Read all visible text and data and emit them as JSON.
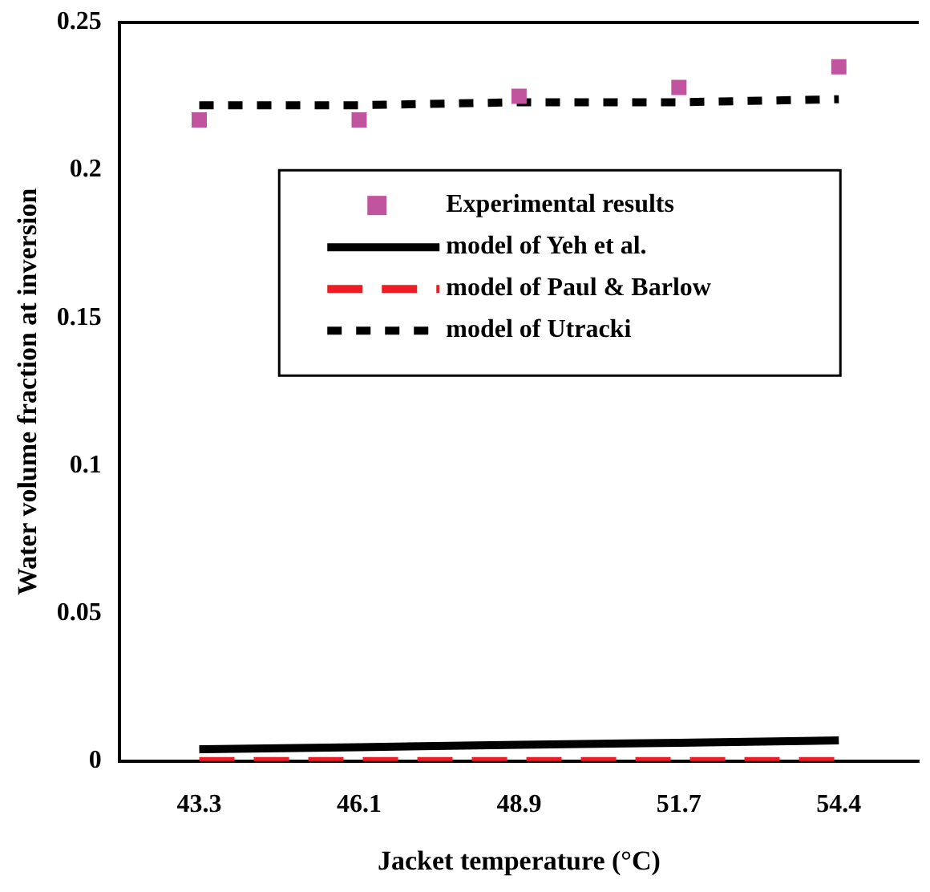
{
  "chart_data": {
    "type": "line",
    "xlabel": "Jacket temperature (°C)",
    "ylabel": "Water volume fraction at inversion",
    "categories": [
      "43.3",
      "46.1",
      "48.9",
      "51.7",
      "54.4"
    ],
    "series": [
      {
        "name": "Experimental results",
        "type": "scatter",
        "marker": "square",
        "color": "#c2549f",
        "values": [
          0.217,
          0.217,
          0.225,
          0.228,
          0.235
        ]
      },
      {
        "name": "model of Yeh et al.",
        "line_style": "solid",
        "marker": "none",
        "color": "#000000",
        "values": [
          0.004,
          0.0047,
          0.0055,
          0.0062,
          0.007
        ]
      },
      {
        "name": "model of Paul & Barlow",
        "line_style": "dashed",
        "marker": "none",
        "color": "#ee1c24",
        "values": [
          0,
          0,
          0,
          0,
          0
        ]
      },
      {
        "name": "model of Utracki",
        "line_style": "dotted",
        "marker": "none",
        "color": "#000000",
        "values": [
          0.222,
          0.222,
          0.223,
          0.223,
          0.224
        ]
      }
    ],
    "ylim": [
      0,
      0.25
    ],
    "yticks": [
      0,
      0.05,
      0.1,
      0.15,
      0.2,
      0.25
    ],
    "grid": false,
    "legend": "right"
  }
}
